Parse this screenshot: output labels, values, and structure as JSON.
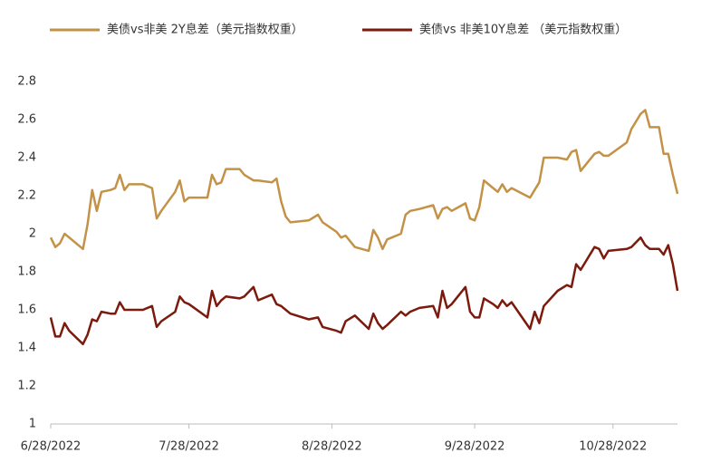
{
  "chart_data": {
    "type": "line",
    "x": [
      "6/28/2022",
      "6/29/2022",
      "6/30/2022",
      "7/1/2022",
      "7/2/2022",
      "7/5/2022",
      "7/6/2022",
      "7/7/2022",
      "7/8/2022",
      "7/9/2022",
      "7/11/2022",
      "7/12/2022",
      "7/13/2022",
      "7/14/2022",
      "7/15/2022",
      "7/18/2022",
      "7/20/2022",
      "7/21/2022",
      "7/22/2022",
      "7/25/2022",
      "7/26/2022",
      "7/27/2022",
      "7/28/2022",
      "8/1/2022",
      "8/2/2022",
      "8/3/2022",
      "8/4/2022",
      "8/5/2022",
      "8/8/2022",
      "8/9/2022",
      "8/11/2022",
      "8/12/2022",
      "8/15/2022",
      "8/16/2022",
      "8/17/2022",
      "8/18/2022",
      "8/19/2022",
      "8/23/2022",
      "8/25/2022",
      "8/26/2022",
      "8/29/2022",
      "8/30/2022",
      "8/31/2022",
      "9/2/2022",
      "9/5/2022",
      "9/6/2022",
      "9/7/2022",
      "9/8/2022",
      "9/9/2022",
      "9/12/2022",
      "9/13/2022",
      "9/14/2022",
      "9/16/2022",
      "9/19/2022",
      "9/20/2022",
      "9/21/2022",
      "9/22/2022",
      "9/23/2022",
      "9/26/2022",
      "9/27/2022",
      "9/28/2022",
      "9/29/2022",
      "9/30/2022",
      "10/2/2022",
      "10/3/2022",
      "10/4/2022",
      "10/5/2022",
      "10/6/2022",
      "10/10/2022",
      "10/11/2022",
      "10/12/2022",
      "10/13/2022",
      "10/16/2022",
      "10/18/2022",
      "10/19/2022",
      "10/20/2022",
      "10/21/2022",
      "10/24/2022",
      "10/25/2022",
      "10/26/2022",
      "10/27/2022",
      "10/31/2022",
      "11/1/2022",
      "11/3/2022",
      "11/4/2022",
      "11/5/2022",
      "11/7/2022",
      "11/8/2022",
      "11/9/2022",
      "11/10/2022",
      "11/11/2022"
    ],
    "series": [
      {
        "name": "美债vs非美 2Y息差（美元指数权重）",
        "color": "#c39247",
        "values": [
          1.98,
          1.93,
          1.95,
          2.0,
          1.98,
          1.92,
          2.05,
          2.23,
          2.12,
          2.22,
          2.23,
          2.24,
          2.31,
          2.23,
          2.26,
          2.26,
          2.24,
          2.08,
          2.12,
          2.22,
          2.28,
          2.17,
          2.19,
          2.19,
          2.31,
          2.26,
          2.27,
          2.34,
          2.34,
          2.31,
          2.28,
          2.28,
          2.27,
          2.29,
          2.17,
          2.09,
          2.06,
          2.07,
          2.1,
          2.06,
          2.01,
          1.98,
          1.99,
          1.93,
          1.91,
          2.02,
          1.98,
          1.92,
          1.97,
          2.0,
          2.1,
          2.12,
          2.13,
          2.15,
          2.08,
          2.13,
          2.14,
          2.12,
          2.16,
          2.08,
          2.07,
          2.14,
          2.28,
          2.24,
          2.22,
          2.26,
          2.22,
          2.24,
          2.19,
          2.23,
          2.27,
          2.4,
          2.4,
          2.39,
          2.43,
          2.44,
          2.33,
          2.42,
          2.43,
          2.41,
          2.41,
          2.48,
          2.55,
          2.63,
          2.65,
          2.56,
          2.56,
          2.42,
          2.42,
          2.31,
          2.21
        ]
      },
      {
        "name": "美债vs 非美10Y息差 （美元指数权重）",
        "color": "#7b1a0d",
        "values": [
          1.56,
          1.46,
          1.46,
          1.53,
          1.49,
          1.42,
          1.47,
          1.55,
          1.54,
          1.59,
          1.58,
          1.58,
          1.64,
          1.6,
          1.6,
          1.6,
          1.62,
          1.51,
          1.54,
          1.59,
          1.67,
          1.64,
          1.63,
          1.56,
          1.7,
          1.62,
          1.65,
          1.67,
          1.66,
          1.67,
          1.72,
          1.65,
          1.68,
          1.63,
          1.62,
          1.6,
          1.58,
          1.55,
          1.56,
          1.51,
          1.49,
          1.48,
          1.54,
          1.57,
          1.5,
          1.58,
          1.53,
          1.5,
          1.52,
          1.59,
          1.57,
          1.59,
          1.61,
          1.62,
          1.56,
          1.7,
          1.61,
          1.63,
          1.72,
          1.59,
          1.56,
          1.56,
          1.66,
          1.63,
          1.61,
          1.65,
          1.62,
          1.64,
          1.5,
          1.59,
          1.53,
          1.62,
          1.7,
          1.73,
          1.72,
          1.84,
          1.81,
          1.93,
          1.92,
          1.87,
          1.91,
          1.92,
          1.93,
          1.98,
          1.94,
          1.92,
          1.92,
          1.89,
          1.94,
          1.84,
          1.7
        ]
      }
    ],
    "xlim": [
      "6/28/2022",
      "11/11/2022"
    ],
    "xticks": [
      "6/28/2022",
      "7/28/2022",
      "8/28/2022",
      "9/28/2022",
      "10/28/2022"
    ],
    "ylim": [
      1,
      2.8
    ],
    "yticks": [
      1,
      1.2,
      1.4,
      1.6,
      1.8,
      2,
      2.2,
      2.4,
      2.6,
      2.8
    ],
    "grid": false,
    "legend": "top"
  }
}
